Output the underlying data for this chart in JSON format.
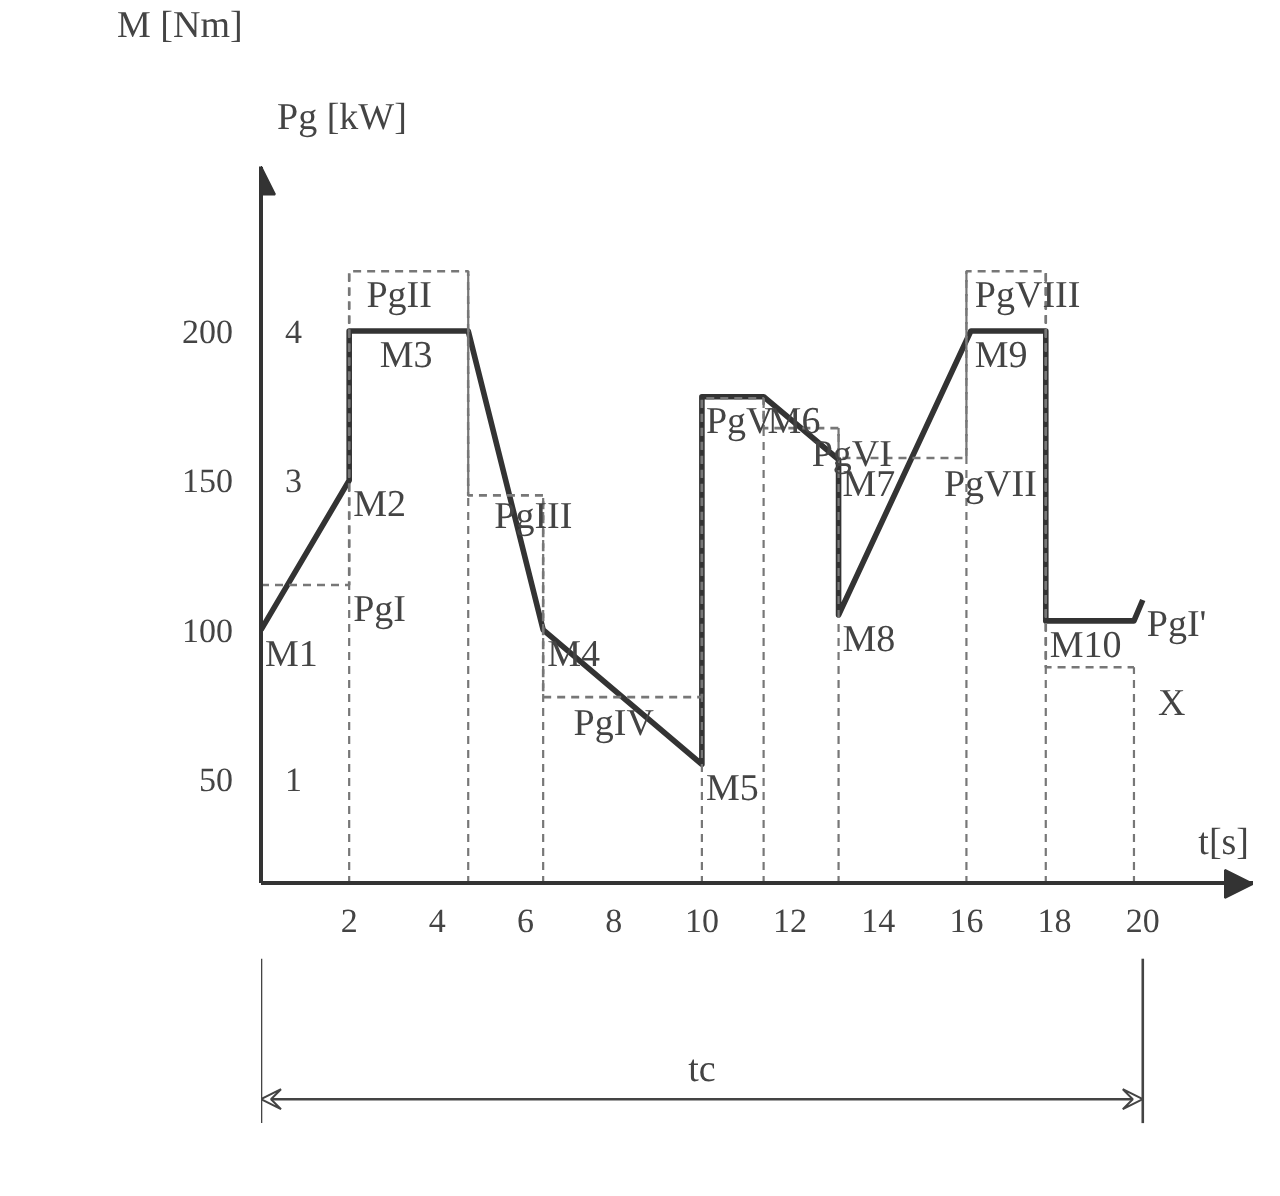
{
  "chart_data": {
    "type": "line",
    "xlabel": "t[s]",
    "ylabel": "M [Nm]",
    "y2label": "Pg [kW]",
    "xlim": [
      0,
      22.5
    ],
    "xticks": [
      2,
      4,
      6,
      8,
      10,
      12,
      14,
      16,
      18,
      20
    ],
    "ylim": [
      15,
      255
    ],
    "yticks": [
      50,
      100,
      150,
      200
    ],
    "y2lim": [
      0.3,
      5.1
    ],
    "y2ticks": [
      1,
      3,
      4
    ],
    "marker": "none",
    "series": [
      {
        "color": "#333333",
        "line_style": "solid",
        "x": [
          0,
          2,
          2,
          4.7,
          6.4,
          10,
          10,
          11.4,
          13.1,
          13.1,
          16.1,
          17.8,
          17.8,
          19.8,
          20
        ],
        "values": [
          100,
          150,
          200,
          200,
          100,
          55,
          178,
          178,
          157,
          105,
          200,
          200,
          103,
          103,
          110
        ]
      },
      {
        "type": "step",
        "axis": "y2",
        "color": "#777777",
        "line_style": "dashed",
        "x": [
          0,
          2,
          4.7,
          6.4,
          10,
          11.4,
          13.1,
          16,
          17.8,
          19.8
        ],
        "values": [
          2.3,
          4.4,
          2.9,
          1.55,
          3.55,
          3.35,
          3.15,
          4.4,
          1.75,
          1.75
        ]
      }
    ],
    "annotations": [
      {
        "text": "M1",
        "x": 0,
        "y": 100
      },
      {
        "text": "M2",
        "x": 2,
        "y": 150
      },
      {
        "text": "M3",
        "x": 2.6,
        "y": 200
      },
      {
        "text": "M4",
        "x": 6.4,
        "y": 100
      },
      {
        "text": "M5",
        "x": 10,
        "y": 55
      },
      {
        "text": "M6",
        "x": 11.4,
        "y": 178
      },
      {
        "text": "M7",
        "x": 13.1,
        "y": 157
      },
      {
        "text": "M8",
        "x": 13.1,
        "y": 105
      },
      {
        "text": "M9",
        "x": 16.1,
        "y": 200
      },
      {
        "text": "M10",
        "x": 17.8,
        "y": 103
      },
      {
        "text": "PgI",
        "x": 2,
        "y": 115
      },
      {
        "text": "PgII",
        "x": 2.3,
        "y": 220
      },
      {
        "text": "PgIII",
        "x": 5.2,
        "y": 146
      },
      {
        "text": "PgIV",
        "x": 7,
        "y": 77
      },
      {
        "text": "PgV",
        "x": 10,
        "y": 178
      },
      {
        "text": "PgVI",
        "x": 12.4,
        "y": 167
      },
      {
        "text": "PgVII",
        "x": 15.4,
        "y": 157
      },
      {
        "text": "PgVIII",
        "x": 16.1,
        "y": 220
      },
      {
        "text": "PgI'",
        "x": 20,
        "y": 110
      },
      "X",
      "tc"
    ]
  }
}
